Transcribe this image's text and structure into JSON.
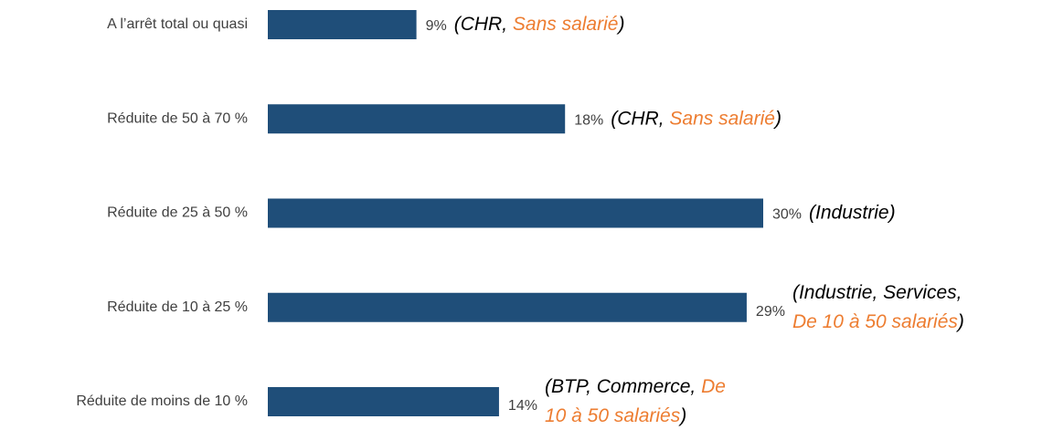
{
  "chart_data": {
    "type": "barh",
    "categories": [
      "A l’arrêt total ou quasi",
      "Réduite de 50 à 70 %",
      "Réduite de 25 à 50 %",
      "Réduite de 10 à 25 %",
      "Réduite de moins de 10 %"
    ],
    "values": [
      9,
      18,
      30,
      29,
      14
    ],
    "value_labels": [
      "9%",
      "18%",
      "30%",
      "29%",
      "14%"
    ],
    "color": "#1f4e79",
    "annotations": [
      [
        [
          {
            "text": "(CHR, ",
            "color": "#000000"
          },
          {
            "text": "Sans salarié",
            "color": "#ed7d31"
          },
          {
            "text": ")",
            "color": "#000000"
          }
        ]
      ],
      [
        [
          {
            "text": "(CHR, ",
            "color": "#000000"
          },
          {
            "text": "Sans salarié",
            "color": "#ed7d31"
          },
          {
            "text": ")",
            "color": "#000000"
          }
        ]
      ],
      [
        [
          {
            "text": "(Industrie)",
            "color": "#000000"
          }
        ]
      ],
      [
        [
          {
            "text": "(Industrie, Services,",
            "color": "#000000"
          }
        ],
        [
          {
            "text": "De 10 à 50 salariés",
            "color": "#ed7d31"
          },
          {
            "text": ")",
            "color": "#000000"
          }
        ]
      ],
      [
        [
          {
            "text": "(BTP, Commerce, ",
            "color": "#000000"
          },
          {
            "text": "De",
            "color": "#ed7d31"
          }
        ],
        [
          {
            "text": "10 à 50 salariés",
            "color": "#ed7d31"
          },
          {
            "text": ")",
            "color": "#000000"
          }
        ]
      ]
    ]
  }
}
